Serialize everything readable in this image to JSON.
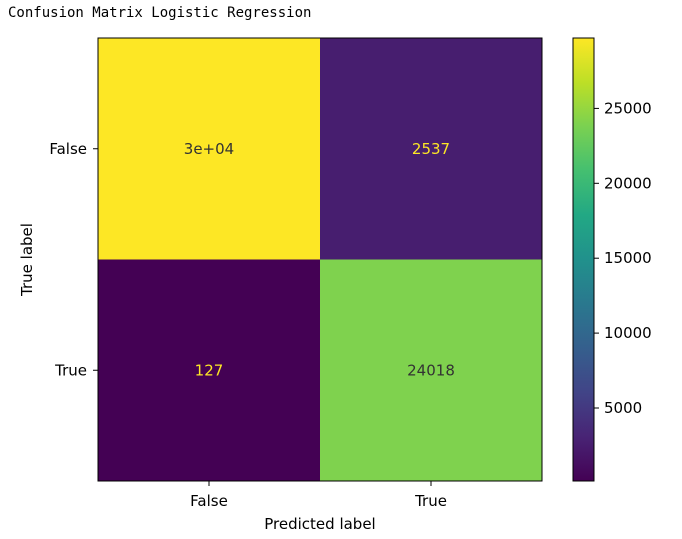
{
  "page": {
    "title": "Confusion Matrix Logistic Regression"
  },
  "chart_data": {
    "type": "heatmap",
    "title": "",
    "xlabel": "Predicted label",
    "ylabel": "True label",
    "x_tick_labels": [
      "False",
      "True"
    ],
    "y_tick_labels": [
      "False",
      "True"
    ],
    "values": [
      [
        29700,
        2537
      ],
      [
        127,
        24018
      ]
    ],
    "cell_labels": [
      [
        "3e+04",
        "2537"
      ],
      [
        "127",
        "24018"
      ]
    ],
    "colormap": "viridis",
    "colorbar": {
      "range": [
        127,
        29700
      ],
      "ticks": [
        5000,
        10000,
        15000,
        20000,
        25000
      ],
      "tick_labels": [
        "5000",
        "10000",
        "15000",
        "20000",
        "25000"
      ]
    },
    "text_color_dark": "#333333",
    "text_color_light": "#fde725"
  }
}
